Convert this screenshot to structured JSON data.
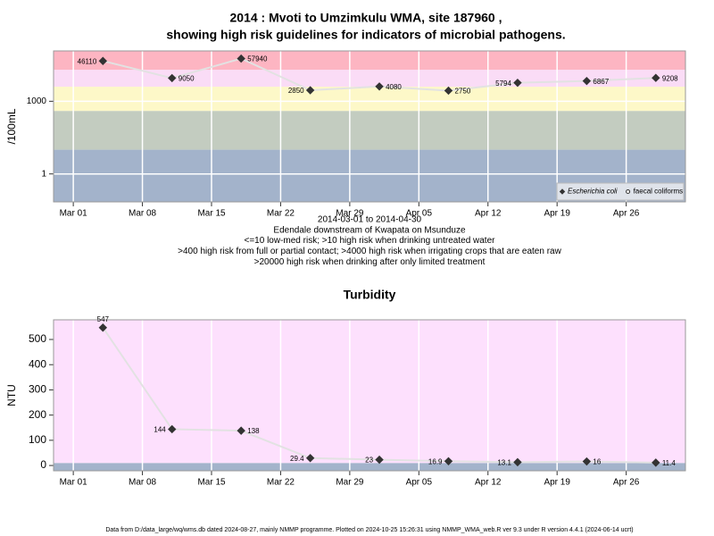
{
  "chart_data": [
    {
      "type": "line",
      "title_lines": [
        "2014 : Mvoti to Umzimkulu WMA, site 187960 ,",
        "showing high risk guidelines for indicators of microbial pathogens."
      ],
      "ylabel": "/100mL",
      "annotations": [
        "2014-03-01 to 2014-04-30",
        "Edendale downstream of Kwapata on Msunduze",
        "<=10 low-med risk; >10 high risk when drinking untreated water",
        ">400 high risk from full or partial contact; >4000 high risk when irrigating crops that are eaten raw",
        ">20000 high risk when drinking after only limited treatment"
      ],
      "x": [
        "Mar 04",
        "Mar 11",
        "Mar 18",
        "Mar 25",
        "Apr 01",
        "Apr 08",
        "Apr 15",
        "Apr 22",
        "Apr 29"
      ],
      "xlim": [
        "Feb 27",
        "May 02"
      ],
      "xticks": [
        "Mar 01",
        "Mar 08",
        "Mar 15",
        "Mar 22",
        "Mar 29",
        "Apr 05",
        "Apr 12",
        "Apr 19",
        "Apr 26"
      ],
      "log_scale": true,
      "ylim": [
        0.07,
        120000
      ],
      "yticks": [
        1,
        1000
      ],
      "grid": "xy",
      "thresholds": [
        10,
        400,
        4000,
        20000
      ],
      "band_colors": [
        "#a3b3cb",
        "#c3ccc0",
        "#fdf8c8",
        "#fadcf6",
        "#fdb5c2"
      ],
      "legend": "bottom-right",
      "series": [
        {
          "name": "Escherichia coli",
          "color": "#333333",
          "line_color": "#e2e2e2",
          "marker": "diamond",
          "marker_fill": "#333333",
          "italic": true,
          "values": [
            46110,
            9050,
            57940,
            2850,
            4080,
            2750,
            5794,
            6867,
            9208
          ]
        },
        {
          "name": "faecal coliforms",
          "color": "#333333",
          "line_color": "#e2e2e2",
          "marker": "circle",
          "marker_fill": "#ffffff",
          "italic": false,
          "values": [
            null,
            null,
            null,
            null,
            null,
            null,
            null,
            null,
            null
          ]
        }
      ]
    },
    {
      "type": "line",
      "title": "Turbidity",
      "ylabel": "NTU",
      "x": [
        "Mar 04",
        "Mar 11",
        "Mar 18",
        "Mar 25",
        "Apr 01",
        "Apr 08",
        "Apr 15",
        "Apr 22",
        "Apr 29"
      ],
      "xlim": [
        "Feb 27",
        "May 02"
      ],
      "xticks": [
        "Mar 01",
        "Mar 08",
        "Mar 15",
        "Mar 22",
        "Mar 29",
        "Apr 05",
        "Apr 12",
        "Apr 19",
        "Apr 26"
      ],
      "log_scale": false,
      "ylim": [
        -21,
        578
      ],
      "yticks": [
        0,
        100,
        200,
        300,
        400,
        500
      ],
      "grid": "x",
      "thresholds": [
        10
      ],
      "band_colors": [
        "#a3b3cb",
        "#fde0fd"
      ],
      "color": "#333333",
      "line_color": "#e2e2e2",
      "marker": "diamond",
      "marker_fill": "#333333",
      "values": [
        547,
        144,
        138,
        29.4,
        23,
        16.9,
        13.1,
        16,
        11.4
      ]
    }
  ],
  "footer": "Data from D:/data_large/wq/wms.db dated 2024-08-27, mainly NMMP programme. Plotted on 2024-10-25 15:26:31 using NMMP_WMA_web.R ver 9.3 under R version 4.4.1 (2024-06-14 ucrt)"
}
